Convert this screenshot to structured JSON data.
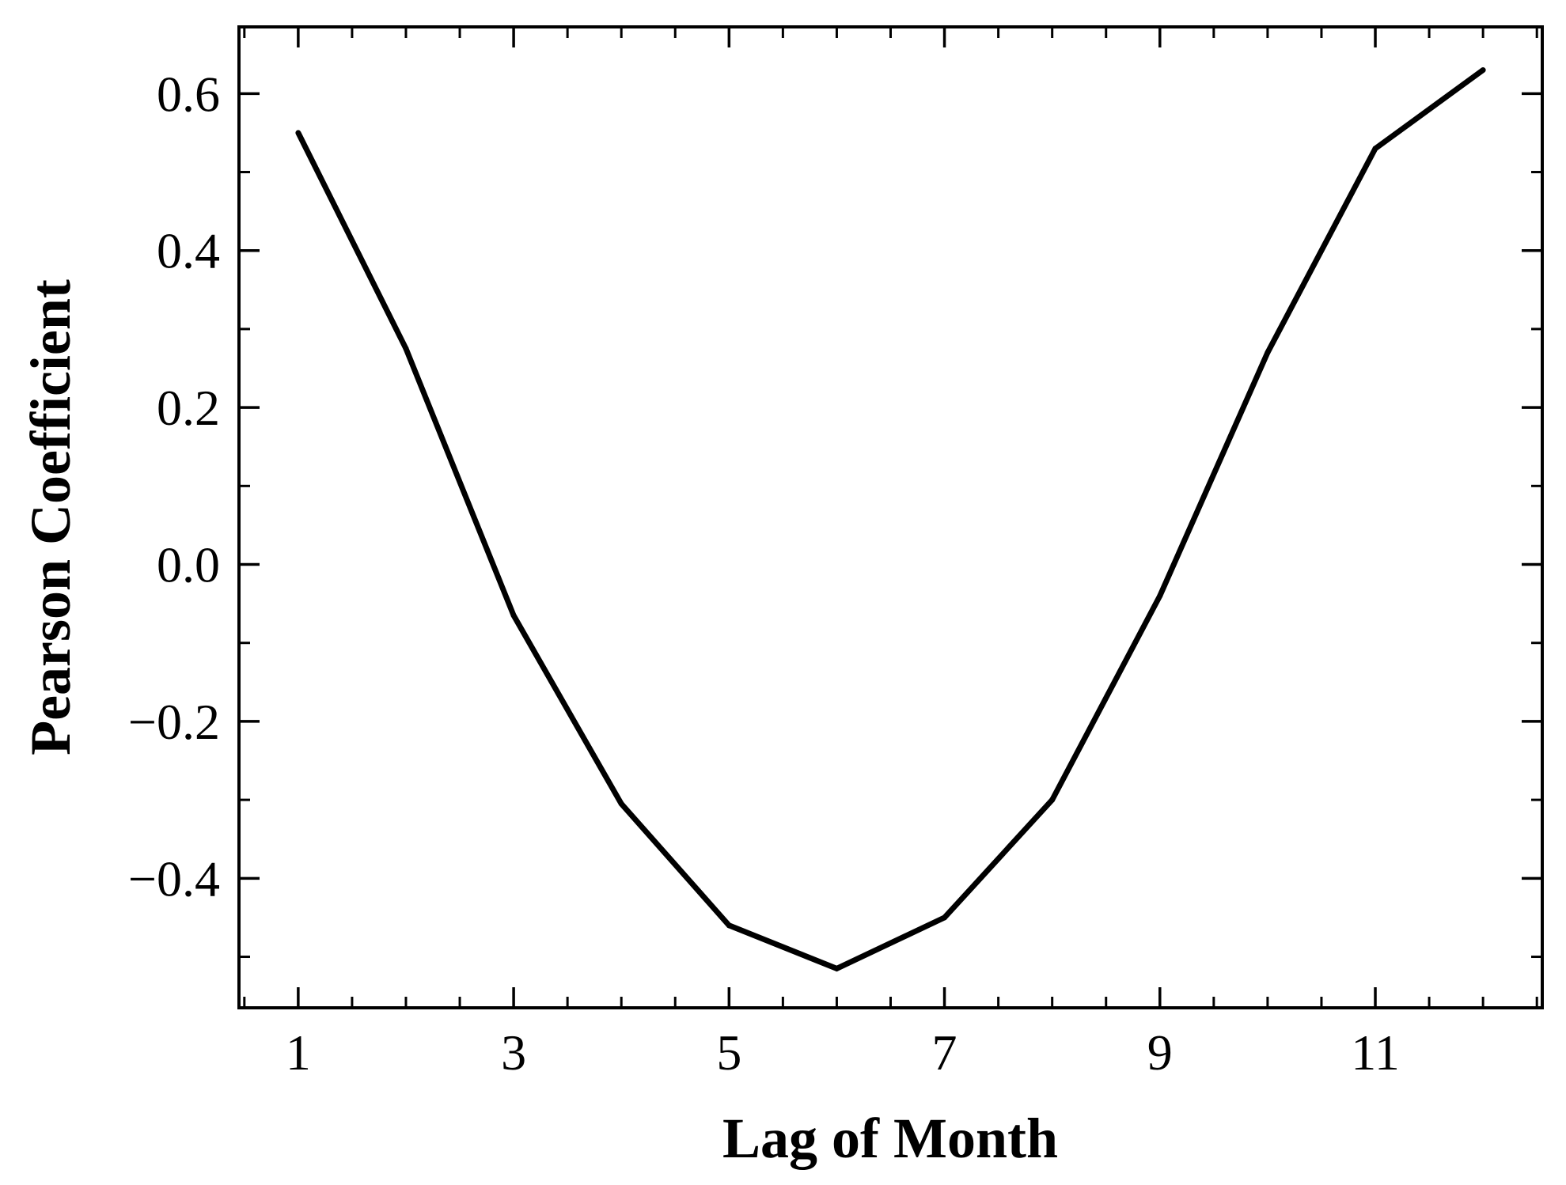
{
  "chart_data": {
    "type": "line",
    "xlabel": "Lag of Month",
    "ylabel": "Pearson Coefficient",
    "xlim": [
      0.45,
      12.55
    ],
    "ylim": [
      -0.565,
      0.685
    ],
    "x_ticks": [
      1,
      3,
      5,
      7,
      9,
      11
    ],
    "x_tick_labels": [
      "1",
      "3",
      "5",
      "7",
      "9",
      "11"
    ],
    "x_minor_step": 0.5,
    "y_ticks": [
      -0.4,
      -0.2,
      0.0,
      0.2,
      0.4,
      0.6
    ],
    "y_tick_labels": [
      "−0.4",
      "−0.2",
      "0.0",
      "0.2",
      "0.4",
      "0.6"
    ],
    "y_minor_step": 0.1,
    "grid": false,
    "legend": "none",
    "series": [
      {
        "color": "#000000",
        "x": [
          1,
          2,
          3,
          4,
          5,
          6,
          7,
          8,
          9,
          10,
          11,
          12
        ],
        "values": [
          0.55,
          0.275,
          -0.065,
          -0.305,
          -0.46,
          -0.515,
          -0.45,
          -0.3,
          -0.04,
          0.27,
          0.53,
          0.63
        ]
      }
    ]
  }
}
